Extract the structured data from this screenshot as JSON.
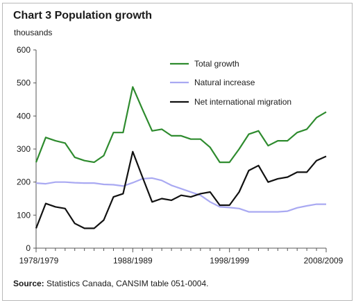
{
  "chart_data": {
    "type": "line",
    "title": "Chart 3 Population growth",
    "unit_label": "thousands",
    "xlabel": "",
    "ylabel": "",
    "ylim": [
      0,
      600
    ],
    "y_ticks": [
      0,
      100,
      200,
      300,
      400,
      500,
      600
    ],
    "x": [
      "1978/1979",
      "1979/1980",
      "1980/1981",
      "1981/1982",
      "1982/1983",
      "1983/1984",
      "1984/1985",
      "1985/1986",
      "1986/1987",
      "1987/1988",
      "1988/1989",
      "1989/1990",
      "1990/1991",
      "1991/1992",
      "1992/1993",
      "1993/1994",
      "1994/1995",
      "1995/1996",
      "1996/1997",
      "1997/1998",
      "1998/1999",
      "1999/2000",
      "2000/2001",
      "2001/2002",
      "2002/2003",
      "2003/2004",
      "2004/2005",
      "2005/2006",
      "2006/2007",
      "2007/2008",
      "2008/2009"
    ],
    "x_tick_labels": [
      "1978/1979",
      "1988/1989",
      "1998/1999",
      "2008/2009"
    ],
    "series": [
      {
        "name": "Total growth",
        "color": "#2e8b2e",
        "values": [
          260,
          335,
          325,
          318,
          275,
          265,
          260,
          280,
          350,
          350,
          488,
          420,
          355,
          360,
          340,
          340,
          330,
          330,
          305,
          260,
          260,
          300,
          345,
          355,
          310,
          325,
          325,
          350,
          360,
          395,
          412
        ]
      },
      {
        "name": "Natural increase",
        "color": "#a9a9f2",
        "values": [
          197,
          195,
          200,
          200,
          198,
          197,
          197,
          193,
          192,
          188,
          198,
          210,
          212,
          205,
          190,
          180,
          170,
          160,
          140,
          125,
          123,
          120,
          110,
          110,
          110,
          110,
          112,
          122,
          128,
          133,
          133
        ]
      },
      {
        "name": "Net international migration",
        "color": "#111111",
        "values": [
          60,
          135,
          125,
          120,
          75,
          60,
          60,
          85,
          155,
          165,
          292,
          215,
          140,
          150,
          145,
          160,
          155,
          165,
          170,
          130,
          130,
          170,
          235,
          250,
          200,
          210,
          215,
          230,
          230,
          265,
          278
        ]
      }
    ],
    "legend_position": "top-right",
    "grid": false,
    "source_label": "Source:",
    "source_text": "Statistics Canada, CANSIM table 051-0004."
  }
}
